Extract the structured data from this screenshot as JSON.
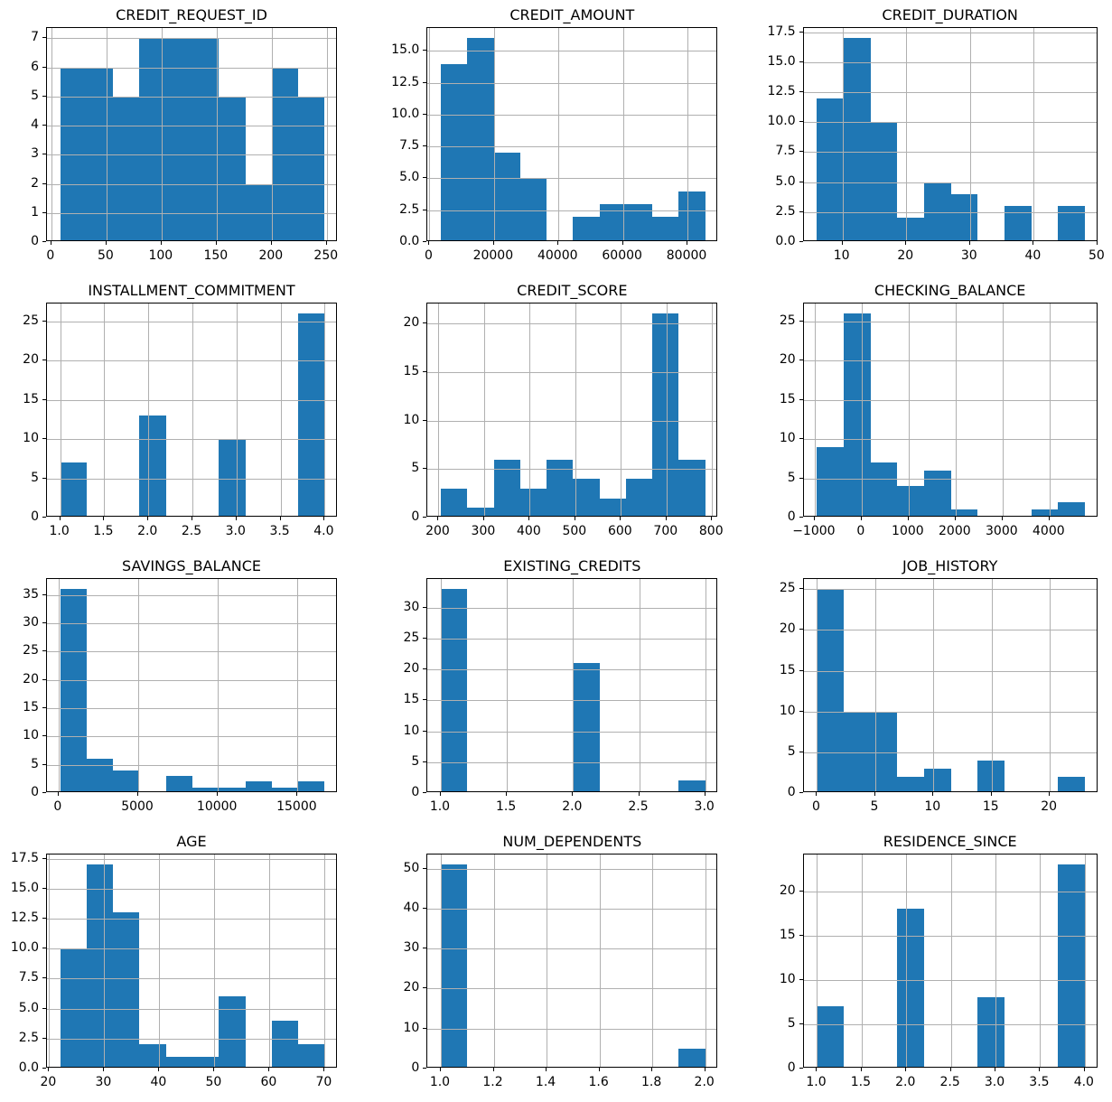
{
  "figure": {
    "description": "Grid of 12 histograms of credit dataset features, 4 rows x 3 columns",
    "n_rows": 4,
    "n_cols": 3,
    "sample_size_per_histogram": 56
  },
  "style": {
    "bar_color": "#1f77b4",
    "grid_color": "#b0b0b0",
    "spine_color": "#000000",
    "background": "#ffffff",
    "text_color": "#000000",
    "grid_on": true,
    "legend": "none"
  },
  "chart_data": [
    {
      "type": "bar",
      "title": "CREDIT_REQUEST_ID",
      "bin_start": 8,
      "bin_width": 24,
      "counts": [
        6,
        6,
        5,
        7,
        7,
        7,
        5,
        2,
        6,
        5
      ],
      "xlim": [
        -4,
        260
      ],
      "ylim": [
        0,
        7.35
      ],
      "xticks": [
        0,
        50,
        100,
        150,
        200,
        250
      ],
      "xtick_labels": [
        "0",
        "50",
        "100",
        "150",
        "200",
        "250"
      ],
      "yticks": [
        0,
        1,
        2,
        3,
        4,
        5,
        6,
        7
      ],
      "ytick_labels": [
        "0",
        "1",
        "2",
        "3",
        "4",
        "5",
        "6",
        "7"
      ]
    },
    {
      "type": "bar",
      "title": "CREDIT_AMOUNT",
      "bin_start": 3500,
      "bin_width": 8200,
      "counts": [
        14,
        16,
        7,
        5,
        0,
        2,
        3,
        3,
        2,
        4
      ],
      "xlim": [
        -600,
        89600
      ],
      "ylim": [
        0,
        16.8
      ],
      "xticks": [
        0,
        20000,
        40000,
        60000,
        80000
      ],
      "xtick_labels": [
        "0",
        "20000",
        "40000",
        "60000",
        "80000"
      ],
      "yticks": [
        0,
        2.5,
        5,
        7.5,
        10,
        12.5,
        15
      ],
      "ytick_labels": [
        "0.0",
        "2.5",
        "5.0",
        "7.5",
        "10.0",
        "12.5",
        "15.0"
      ]
    },
    {
      "type": "bar",
      "title": "CREDIT_DURATION",
      "bin_start": 6,
      "bin_width": 4.2,
      "counts": [
        12,
        17,
        10,
        2,
        5,
        4,
        0,
        3,
        0,
        3
      ],
      "xlim": [
        3.9,
        50.1
      ],
      "ylim": [
        0,
        17.85
      ],
      "xticks": [
        10,
        20,
        30,
        40,
        50
      ],
      "xtick_labels": [
        "10",
        "20",
        "30",
        "40",
        "50"
      ],
      "yticks": [
        0,
        2.5,
        5,
        7.5,
        10,
        12.5,
        15,
        17.5
      ],
      "ytick_labels": [
        "0.0",
        "2.5",
        "5.0",
        "7.5",
        "10.0",
        "12.5",
        "15.0",
        "17.5"
      ]
    },
    {
      "type": "bar",
      "title": "INSTALLMENT_COMMITMENT",
      "bin_start": 1.0,
      "bin_width": 0.3,
      "counts": [
        7,
        0,
        0,
        13,
        0,
        0,
        10,
        0,
        0,
        26
      ],
      "xlim": [
        0.85,
        4.15
      ],
      "ylim": [
        0,
        27.3
      ],
      "xticks": [
        1.0,
        1.5,
        2.0,
        2.5,
        3.0,
        3.5,
        4.0
      ],
      "xtick_labels": [
        "1.0",
        "1.5",
        "2.0",
        "2.5",
        "3.0",
        "3.5",
        "4.0"
      ],
      "yticks": [
        0,
        5,
        10,
        15,
        20,
        25
      ],
      "ytick_labels": [
        "0",
        "5",
        "10",
        "15",
        "20",
        "25"
      ]
    },
    {
      "type": "bar",
      "title": "CREDIT_SCORE",
      "bin_start": 205,
      "bin_width": 58,
      "counts": [
        3,
        1,
        6,
        3,
        6,
        4,
        2,
        4,
        21,
        6
      ],
      "xlim": [
        176,
        814
      ],
      "ylim": [
        0,
        22.05
      ],
      "xticks": [
        200,
        300,
        400,
        500,
        600,
        700,
        800
      ],
      "xtick_labels": [
        "200",
        "300",
        "400",
        "500",
        "600",
        "700",
        "800"
      ],
      "yticks": [
        0,
        5,
        10,
        15,
        20
      ],
      "ytick_labels": [
        "0",
        "5",
        "10",
        "15",
        "20"
      ]
    },
    {
      "type": "bar",
      "title": "CHECKING_BALANCE",
      "bin_start": -950,
      "bin_width": 570,
      "counts": [
        9,
        26,
        7,
        4,
        6,
        1,
        0,
        0,
        1,
        2
      ],
      "xlim": [
        -1235,
        5035
      ],
      "ylim": [
        0,
        27.3
      ],
      "xticks": [
        -1000,
        0,
        1000,
        2000,
        3000,
        4000
      ],
      "xtick_labels": [
        "−1000",
        "0",
        "1000",
        "2000",
        "3000",
        "4000"
      ],
      "yticks": [
        0,
        5,
        10,
        15,
        20,
        25
      ],
      "ytick_labels": [
        "0",
        "5",
        "10",
        "15",
        "20",
        "25"
      ]
    },
    {
      "type": "bar",
      "title": "SAVINGS_BALANCE",
      "bin_start": 100,
      "bin_width": 1660,
      "counts": [
        36,
        6,
        4,
        0,
        3,
        1,
        1,
        2,
        1,
        2
      ],
      "xlim": [
        -730,
        17530
      ],
      "ylim": [
        0,
        37.8
      ],
      "xticks": [
        0,
        5000,
        10000,
        15000
      ],
      "xtick_labels": [
        "0",
        "5000",
        "10000",
        "15000"
      ],
      "yticks": [
        0,
        5,
        10,
        15,
        20,
        25,
        30,
        35
      ],
      "ytick_labels": [
        "0",
        "5",
        "10",
        "15",
        "20",
        "25",
        "30",
        "35"
      ]
    },
    {
      "type": "bar",
      "title": "EXISTING_CREDITS",
      "bin_start": 1.0,
      "bin_width": 0.2,
      "counts": [
        33,
        0,
        0,
        0,
        0,
        21,
        0,
        0,
        0,
        2
      ],
      "xlim": [
        0.9,
        3.1
      ],
      "ylim": [
        0,
        34.65
      ],
      "xticks": [
        1.0,
        1.5,
        2.0,
        2.5,
        3.0
      ],
      "xtick_labels": [
        "1.0",
        "1.5",
        "2.0",
        "2.5",
        "3.0"
      ],
      "yticks": [
        0,
        5,
        10,
        15,
        20,
        25,
        30
      ],
      "ytick_labels": [
        "0",
        "5",
        "10",
        "15",
        "20",
        "25",
        "30"
      ]
    },
    {
      "type": "bar",
      "title": "JOB_HISTORY",
      "bin_start": 0,
      "bin_width": 2.3,
      "counts": [
        25,
        10,
        10,
        2,
        3,
        0,
        4,
        0,
        0,
        2
      ],
      "xlim": [
        -1.15,
        24.15
      ],
      "ylim": [
        0,
        26.25
      ],
      "xticks": [
        0,
        5,
        10,
        15,
        20
      ],
      "xtick_labels": [
        "0",
        "5",
        "10",
        "15",
        "20"
      ],
      "yticks": [
        0,
        5,
        10,
        15,
        20,
        25
      ],
      "ytick_labels": [
        "0",
        "5",
        "10",
        "15",
        "20",
        "25"
      ]
    },
    {
      "type": "bar",
      "title": "AGE",
      "bin_start": 22,
      "bin_width": 4.8,
      "counts": [
        10,
        17,
        13,
        2,
        1,
        1,
        6,
        0,
        4,
        2
      ],
      "xlim": [
        19.6,
        72.4
      ],
      "ylim": [
        0,
        17.85
      ],
      "xticks": [
        20,
        30,
        40,
        50,
        60,
        70
      ],
      "xtick_labels": [
        "20",
        "30",
        "40",
        "50",
        "60",
        "70"
      ],
      "yticks": [
        0,
        2.5,
        5,
        7.5,
        10,
        12.5,
        15,
        17.5
      ],
      "ytick_labels": [
        "0.0",
        "2.5",
        "5.0",
        "7.5",
        "10.0",
        "12.5",
        "15.0",
        "17.5"
      ]
    },
    {
      "type": "bar",
      "title": "NUM_DEPENDENTS",
      "bin_start": 1.0,
      "bin_width": 0.1,
      "counts": [
        51,
        0,
        0,
        0,
        0,
        0,
        0,
        0,
        0,
        5
      ],
      "xlim": [
        0.95,
        2.05
      ],
      "ylim": [
        0,
        53.55
      ],
      "xticks": [
        1.0,
        1.2,
        1.4,
        1.6,
        1.8,
        2.0
      ],
      "xtick_labels": [
        "1.0",
        "1.2",
        "1.4",
        "1.6",
        "1.8",
        "2.0"
      ],
      "yticks": [
        0,
        10,
        20,
        30,
        40,
        50
      ],
      "ytick_labels": [
        "0",
        "10",
        "20",
        "30",
        "40",
        "50"
      ]
    },
    {
      "type": "bar",
      "title": "RESIDENCE_SINCE",
      "bin_start": 1.0,
      "bin_width": 0.3,
      "counts": [
        7,
        0,
        0,
        18,
        0,
        0,
        8,
        0,
        0,
        23
      ],
      "xlim": [
        0.85,
        4.15
      ],
      "ylim": [
        0,
        24.15
      ],
      "xticks": [
        1.0,
        1.5,
        2.0,
        2.5,
        3.0,
        3.5,
        4.0
      ],
      "xtick_labels": [
        "1.0",
        "1.5",
        "2.0",
        "2.5",
        "3.0",
        "3.5",
        "4.0"
      ],
      "yticks": [
        0,
        5,
        10,
        15,
        20
      ],
      "ytick_labels": [
        "0",
        "5",
        "10",
        "15",
        "20"
      ]
    }
  ]
}
